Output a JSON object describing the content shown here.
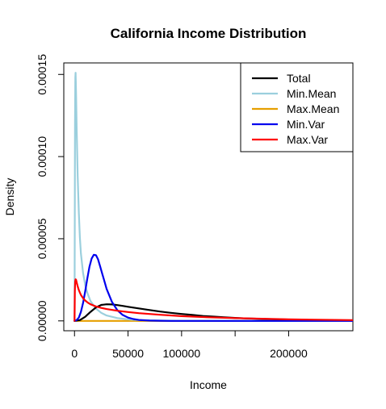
{
  "chart_data": {
    "type": "line",
    "title": "California Income Distribution",
    "xlabel": "Income",
    "ylabel": "Density",
    "xlim": [
      -10000,
      260000
    ],
    "ylim": [
      -6e-06,
      0.000157
    ],
    "x_ticks": [
      {
        "value": 0,
        "label": "0"
      },
      {
        "value": 50000,
        "label": "50000"
      },
      {
        "value": 100000,
        "label": "100000"
      },
      {
        "value": 150000,
        "label": ""
      },
      {
        "value": 200000,
        "label": "200000"
      }
    ],
    "y_ticks": [
      {
        "value": 0,
        "label": "0.00000"
      },
      {
        "value": 5e-05,
        "label": "0.00005"
      },
      {
        "value": 0.0001,
        "label": "0.00010"
      },
      {
        "value": 0.00015,
        "label": "0.00015"
      }
    ],
    "legend_position": "top-right",
    "grid": false,
    "series": [
      {
        "name": "Total",
        "color": "#000000",
        "x": [
          0,
          5000,
          10000,
          15000,
          20000,
          25000,
          30000,
          35000,
          40000,
          45000,
          50000,
          60000,
          70000,
          80000,
          90000,
          100000,
          110000,
          120000,
          130000,
          140000,
          150000,
          160000,
          170000,
          180000,
          190000,
          200000,
          210000,
          220000,
          230000,
          240000,
          250000,
          260000
        ],
        "y": [
          0,
          5e-07,
          2.5e-06,
          5.5e-06,
          8.2e-06,
          9.7e-06,
          1.01e-05,
          1e-05,
          9.6e-06,
          9.1e-06,
          8.6e-06,
          7.6e-06,
          6.6e-06,
          5.7e-06,
          4.9e-06,
          4.2e-06,
          3.6e-06,
          3e-06,
          2.6e-06,
          2.2e-06,
          1.8e-06,
          1.5e-06,
          1.3e-06,
          1.1e-06,
          9e-07,
          8e-07,
          7e-07,
          6e-07,
          5e-07,
          4e-07,
          3e-07,
          3e-07
        ]
      },
      {
        "name": "Min.Mean",
        "color": "#9bcfdd",
        "x": [
          0,
          200,
          500,
          800,
          1000,
          1500,
          2000,
          3000,
          4000,
          5000,
          6000,
          8000,
          10000,
          12000,
          15000,
          20000,
          25000,
          30000,
          40000,
          50000,
          60000,
          80000,
          100000,
          150000,
          200000,
          260000
        ],
        "y": [
          0,
          4e-05,
          0.00012,
          0.000148,
          0.000151,
          0.000138,
          0.000118,
          8.8e-05,
          6.6e-05,
          5.1e-05,
          4.1e-05,
          2.9e-05,
          2.2e-05,
          1.7e-05,
          1.2e-05,
          7.5e-06,
          4.9e-06,
          3.3e-06,
          1.7e-06,
          9e-07,
          5e-07,
          2e-07,
          1e-07,
          0,
          0,
          0
        ]
      },
      {
        "name": "Max.Mean",
        "color": "#e69f00",
        "x": [
          0,
          50000,
          100000,
          150000,
          200000,
          260000
        ],
        "y": [
          0,
          0,
          0,
          0,
          0,
          0
        ]
      },
      {
        "name": "Min.Var",
        "color": "#0000ee",
        "x": [
          0,
          2000,
          4000,
          6000,
          8000,
          10000,
          12000,
          14000,
          16000,
          18000,
          20000,
          22000,
          24000,
          26000,
          28000,
          30000,
          35000,
          40000,
          45000,
          50000,
          55000,
          60000,
          70000,
          80000,
          90000,
          100000,
          120000,
          150000,
          200000,
          260000
        ],
        "y": [
          0,
          5e-07,
          2e-06,
          5.5e-06,
          1.1e-05,
          1.8e-05,
          2.6e-05,
          3.3e-05,
          3.8e-05,
          4.02e-05,
          4e-05,
          3.75e-05,
          3.3e-05,
          2.85e-05,
          2.4e-05,
          1.95e-05,
          1.15e-05,
          6.5e-06,
          3.6e-06,
          2e-06,
          1.1e-06,
          6e-07,
          2e-07,
          1e-07,
          0,
          0,
          0,
          0,
          0,
          0
        ]
      },
      {
        "name": "Max.Var",
        "color": "#ff0000",
        "x": [
          0,
          300,
          600,
          1000,
          1500,
          2000,
          3000,
          4000,
          5000,
          6000,
          8000,
          10000,
          12500,
          15000,
          20000,
          25000,
          30000,
          40000,
          50000,
          60000,
          80000,
          100000,
          125000,
          150000,
          200000,
          260000
        ],
        "y": [
          0,
          1.8e-05,
          2.4e-05,
          2.53e-05,
          2.5e-05,
          2.35e-05,
          2.1e-05,
          1.88e-05,
          1.72e-05,
          1.58e-05,
          1.38e-05,
          1.24e-05,
          1.11e-05,
          1.01e-05,
          8.8e-06,
          7.9e-06,
          7.2e-06,
          6.2e-06,
          5.4e-06,
          4.7e-06,
          3.7e-06,
          2.9e-06,
          2.2e-06,
          1.7e-06,
          9e-07,
          5e-07
        ]
      }
    ]
  }
}
